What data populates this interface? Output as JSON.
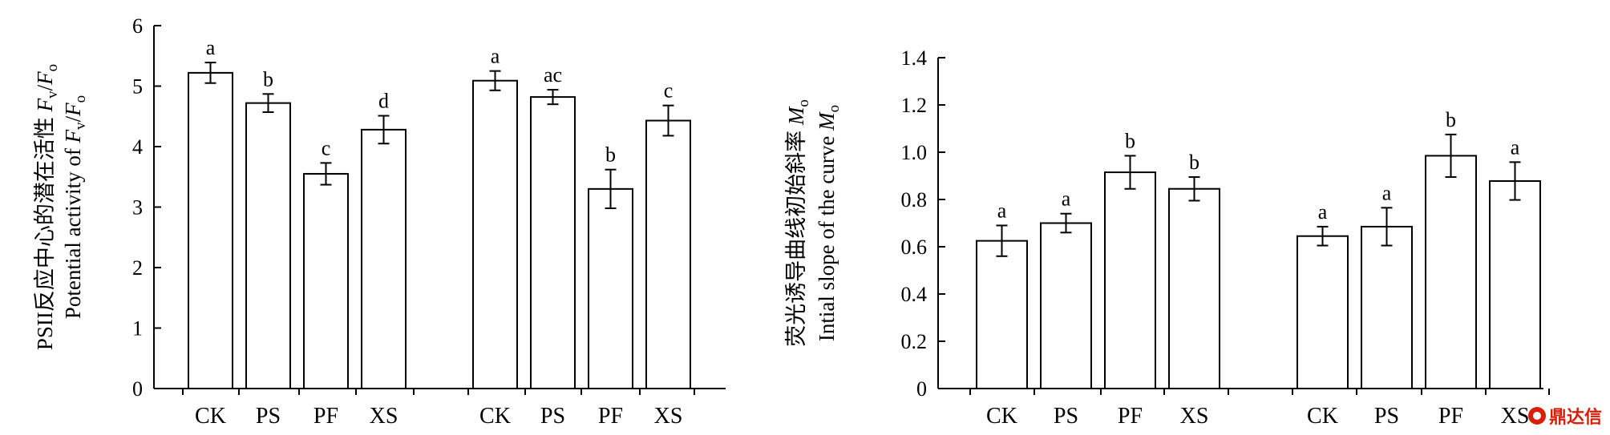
{
  "chart_data": [
    {
      "type": "bar",
      "ylabel_cn": "PSII反应中心的潜在活性",
      "ylabel_cn_sym": "F",
      "ylabel_en": "Potential activity of",
      "ylabel_sym": "F",
      "yticks": [
        "0",
        "1",
        "2",
        "3",
        "4",
        "5",
        "6"
      ],
      "ylim": [
        0,
        6
      ],
      "groups": [
        {
          "categories": [
            "CK",
            "PS",
            "PF",
            "XS"
          ],
          "values": [
            5.22,
            4.72,
            3.55,
            4.28
          ],
          "errors": [
            0.17,
            0.15,
            0.18,
            0.23
          ],
          "letters": [
            "a",
            "b",
            "c",
            "d"
          ]
        },
        {
          "categories": [
            "CK",
            "PS",
            "PF",
            "XS"
          ],
          "values": [
            5.09,
            4.82,
            3.3,
            4.43
          ],
          "errors": [
            0.16,
            0.12,
            0.32,
            0.25
          ],
          "letters": [
            "a",
            "ac",
            "b",
            "c"
          ]
        }
      ]
    },
    {
      "type": "bar",
      "ylabel_cn": "荧光诱导曲线初始斜率",
      "ylabel_cn_sym": "M",
      "ylabel_en": "Intial slope of the curve",
      "ylabel_sym": "M",
      "yticks": [
        "0",
        "0.2",
        "0.4",
        "0.6",
        "0.8",
        "1.0",
        "1.2",
        "1.4"
      ],
      "ylim": [
        0,
        1.4
      ],
      "groups": [
        {
          "categories": [
            "CK",
            "PS",
            "PF",
            "XS"
          ],
          "values": [
            0.625,
            0.7,
            0.915,
            0.845
          ],
          "errors": [
            0.065,
            0.04,
            0.07,
            0.05
          ],
          "letters": [
            "a",
            "a",
            "b",
            "b"
          ]
        },
        {
          "categories": [
            "CK",
            "PS",
            "PF",
            "XS"
          ],
          "values": [
            0.645,
            0.685,
            0.985,
            0.878
          ],
          "errors": [
            0.04,
            0.08,
            0.09,
            0.08
          ],
          "letters": [
            "a",
            "a",
            "b",
            "a"
          ]
        }
      ]
    }
  ],
  "watermark": {
    "text": "鼎达信",
    "color": "#d81e06"
  }
}
